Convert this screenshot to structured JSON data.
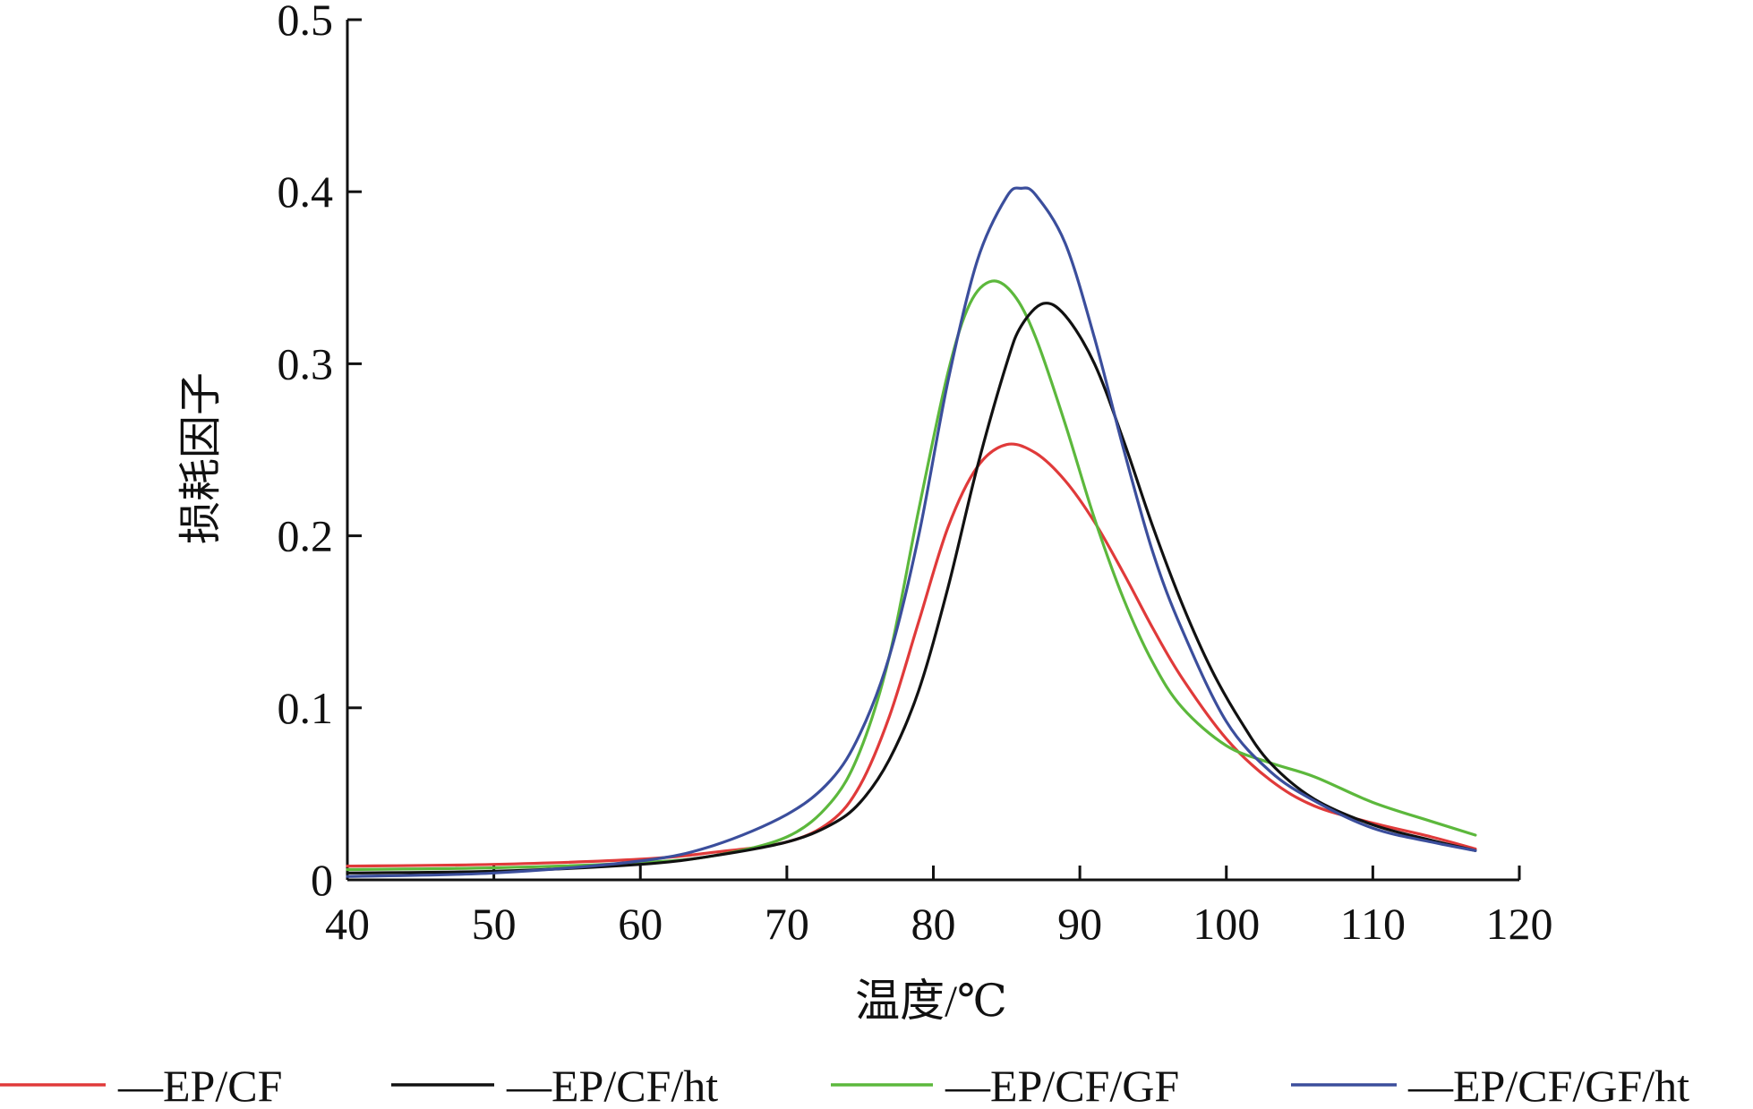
{
  "chart_data": {
    "type": "line",
    "xlabel": "温度/℃",
    "ylabel": "损耗因子",
    "xlim": [
      40,
      120
    ],
    "ylim": [
      0,
      0.5
    ],
    "x_ticks": [
      40,
      50,
      60,
      70,
      80,
      90,
      100,
      110,
      120
    ],
    "y_ticks": [
      0,
      0.1,
      0.2,
      0.3,
      0.4,
      0.5
    ],
    "y_tick_labels": [
      "0",
      "0.1",
      "0.2",
      "0.3",
      "0.4",
      "0.5"
    ],
    "grid": false,
    "legend_position": "bottom",
    "series": [
      {
        "name": "—EP/CF",
        "color": "#e03a3a",
        "x": [
          40,
          50,
          60,
          65,
          70,
          73,
          75,
          77,
          79,
          81,
          83,
          85,
          87,
          89,
          91,
          93,
          95,
          97,
          100,
          103,
          106,
          110,
          114,
          117
        ],
        "y": [
          0.008,
          0.009,
          0.012,
          0.016,
          0.022,
          0.034,
          0.055,
          0.095,
          0.15,
          0.205,
          0.24,
          0.253,
          0.248,
          0.232,
          0.208,
          0.178,
          0.146,
          0.117,
          0.082,
          0.058,
          0.043,
          0.033,
          0.025,
          0.018
        ]
      },
      {
        "name": "—EP/CF/ht",
        "color": "#111111",
        "x": [
          40,
          50,
          60,
          65,
          70,
          73,
          75,
          77,
          79,
          81,
          83,
          85,
          86,
          87.5,
          89,
          91,
          93,
          95,
          97,
          99,
          101,
          103,
          106,
          110,
          114,
          117
        ],
        "y": [
          0.004,
          0.005,
          0.009,
          0.014,
          0.022,
          0.032,
          0.045,
          0.07,
          0.11,
          0.17,
          0.24,
          0.3,
          0.322,
          0.335,
          0.328,
          0.3,
          0.255,
          0.205,
          0.16,
          0.122,
          0.092,
          0.068,
          0.047,
          0.032,
          0.023,
          0.017
        ]
      },
      {
        "name": "—EP/CF/GF",
        "color": "#5cb83c",
        "x": [
          40,
          50,
          60,
          65,
          70,
          73,
          75,
          77,
          79,
          81,
          82.5,
          84,
          85.5,
          87,
          89,
          91,
          93,
          95,
          97,
          100,
          103,
          106,
          110,
          114,
          117
        ],
        "y": [
          0.006,
          0.007,
          0.01,
          0.014,
          0.025,
          0.045,
          0.075,
          0.13,
          0.215,
          0.295,
          0.335,
          0.348,
          0.34,
          0.315,
          0.265,
          0.21,
          0.163,
          0.126,
          0.1,
          0.078,
          0.068,
          0.06,
          0.045,
          0.034,
          0.026
        ]
      },
      {
        "name": "—EP/CF/GF/ht",
        "color": "#3b4e9c",
        "x": [
          40,
          50,
          60,
          65,
          70,
          73,
          75,
          77,
          79,
          81,
          83,
          85,
          86,
          87,
          89,
          91,
          93,
          95,
          97,
          100,
          103,
          106,
          110,
          114,
          117
        ],
        "y": [
          0.002,
          0.004,
          0.011,
          0.02,
          0.038,
          0.058,
          0.085,
          0.13,
          0.2,
          0.29,
          0.36,
          0.397,
          0.402,
          0.398,
          0.37,
          0.315,
          0.25,
          0.19,
          0.145,
          0.092,
          0.063,
          0.046,
          0.03,
          0.022,
          0.017
        ]
      }
    ]
  }
}
